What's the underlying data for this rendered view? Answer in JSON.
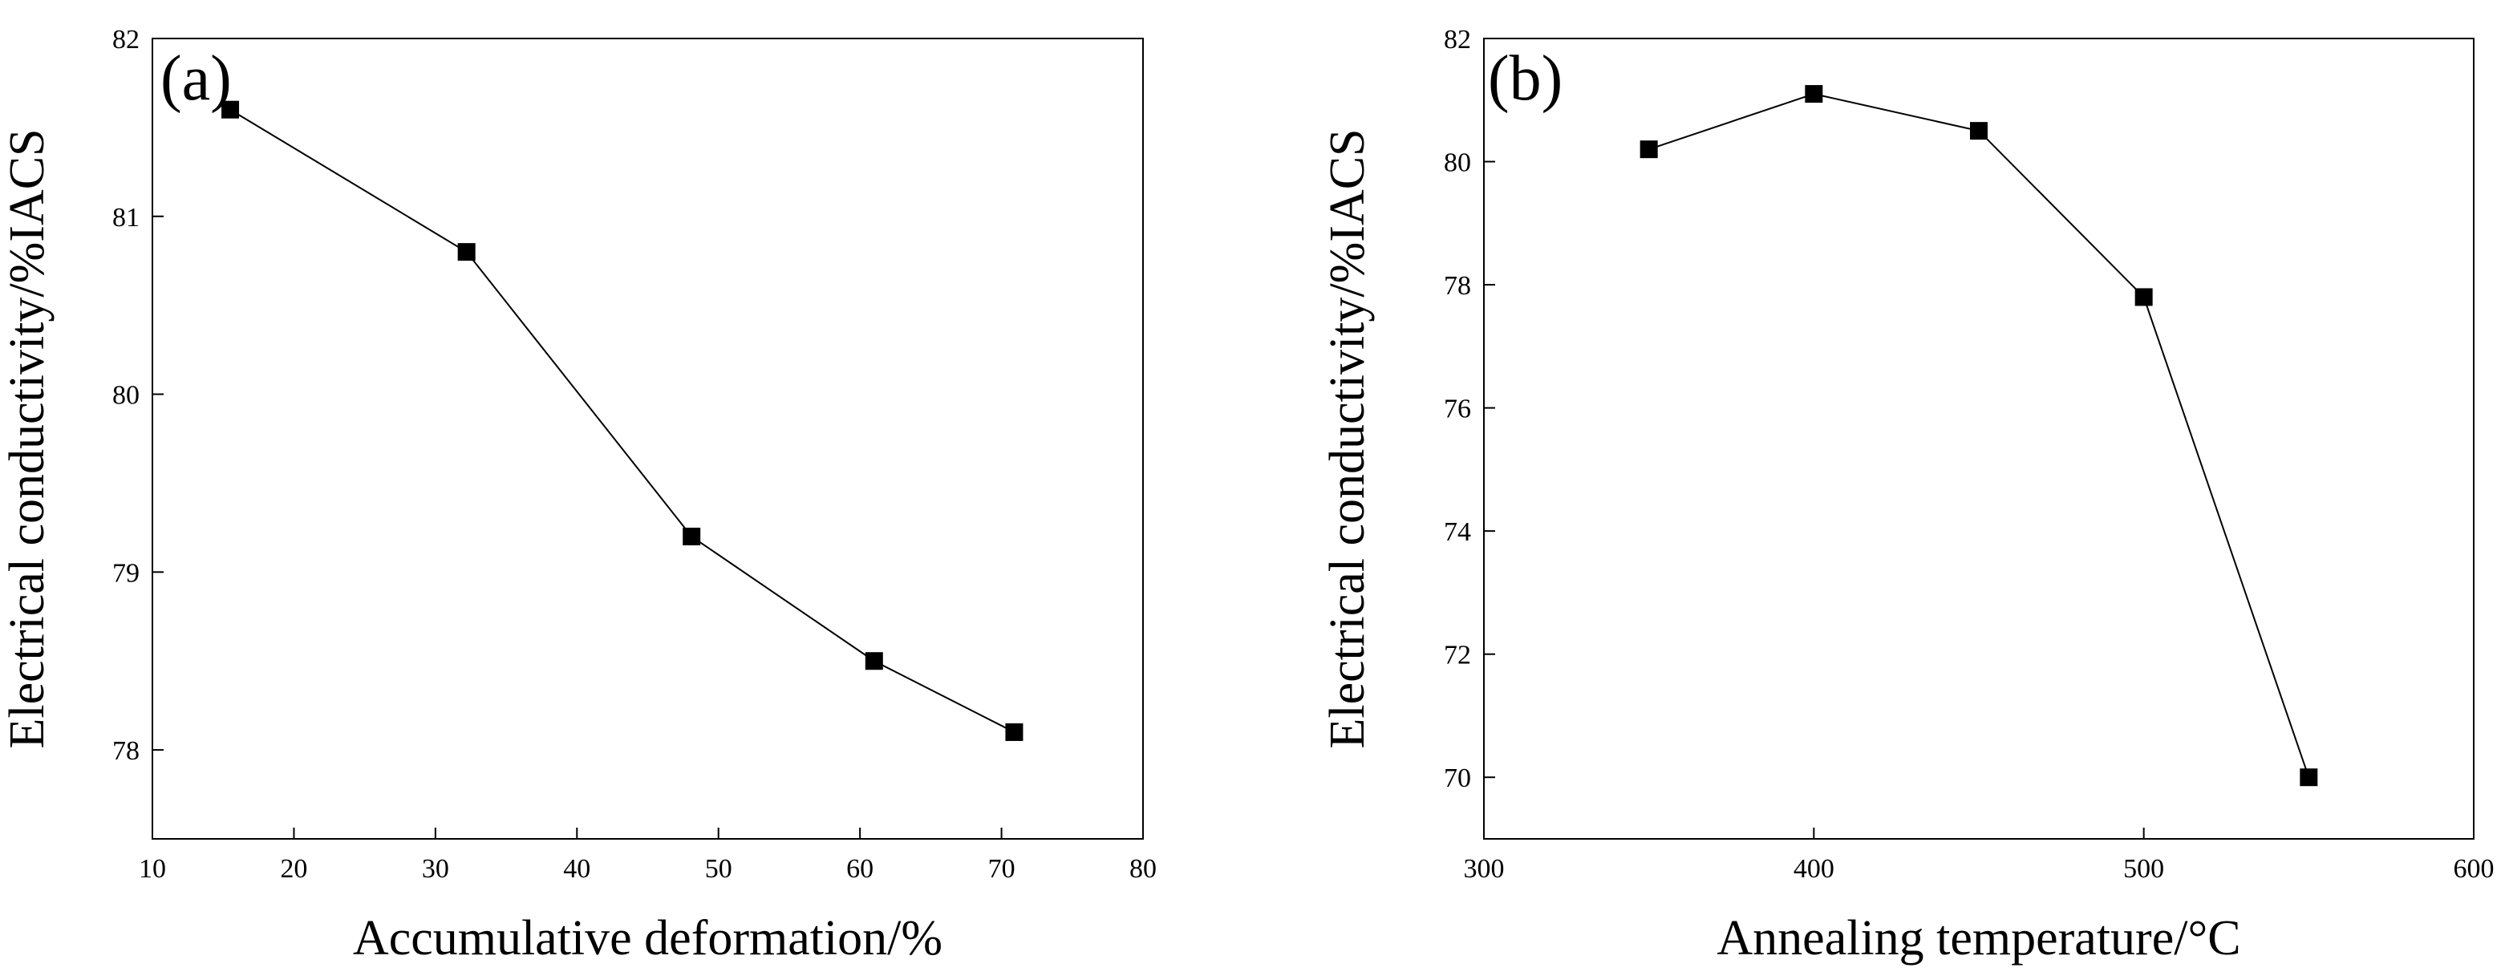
{
  "colors": {
    "background": "#ffffff",
    "ink": "#000000"
  },
  "chart_data": [
    {
      "type": "line",
      "panel_label": "(a)",
      "xlabel": "Accumulative deformation/%",
      "ylabel": "Electrical conductivity/%IACS",
      "xlim": [
        10,
        80
      ],
      "ylim": [
        77.5,
        82
      ],
      "xticks": [
        10,
        20,
        30,
        40,
        50,
        60,
        70,
        80
      ],
      "yticks": [
        78,
        79,
        80,
        81,
        82
      ],
      "marker": "square",
      "series": [
        {
          "name": "conductivity",
          "x": [
            15.5,
            32.2,
            48.1,
            61.0,
            70.9
          ],
          "y": [
            81.6,
            80.8,
            79.2,
            78.5,
            78.1
          ]
        }
      ]
    },
    {
      "type": "line",
      "panel_label": "(b)",
      "xlabel": "Annealing temperature/°C",
      "ylabel": "Electrical conductivity/%IACS",
      "xlim": [
        300,
        600
      ],
      "ylim": [
        69,
        82
      ],
      "xticks": [
        300,
        400,
        500,
        600
      ],
      "yticks": [
        70,
        72,
        74,
        76,
        78,
        80,
        82
      ],
      "marker": "square",
      "series": [
        {
          "name": "conductivity",
          "x": [
            350,
            400,
            450,
            500,
            550
          ],
          "y": [
            80.2,
            81.1,
            80.5,
            77.8,
            70.0
          ]
        }
      ]
    }
  ]
}
